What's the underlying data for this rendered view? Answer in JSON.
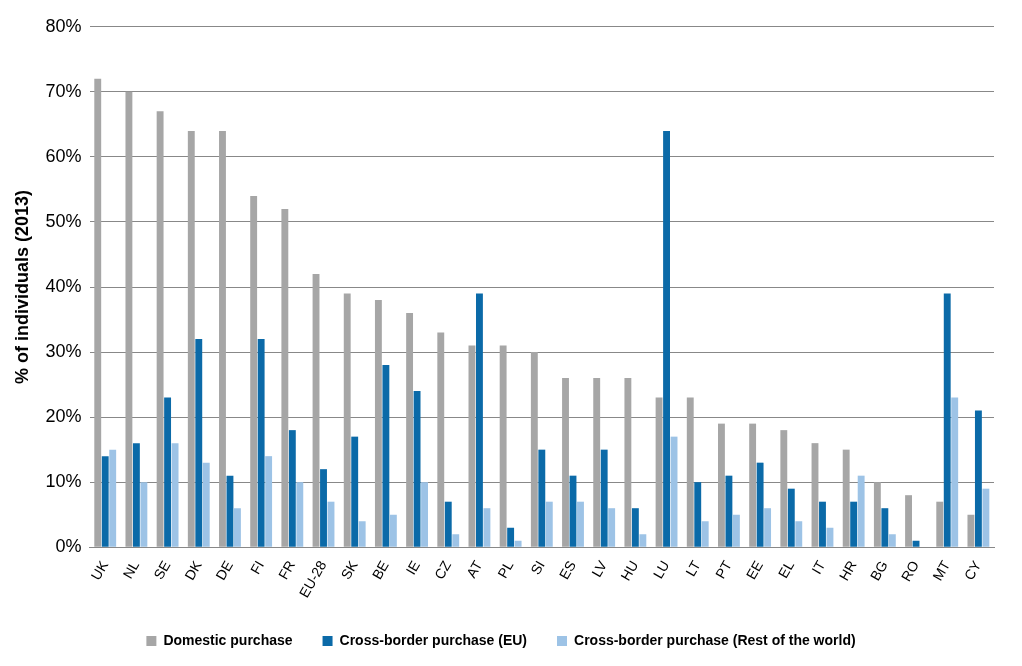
{
  "chart_data": {
    "type": "bar",
    "ylabel": "% of individuals (2013)",
    "categories": [
      "UK",
      "NL",
      "SE",
      "DK",
      "DE",
      "FI",
      "FR",
      "EU-28",
      "SK",
      "BE",
      "IE",
      "CZ",
      "AT",
      "PL",
      "SI",
      "ES",
      "LV",
      "HU",
      "LU",
      "LT",
      "PT",
      "EE",
      "EL",
      "IT",
      "HR",
      "BG",
      "RO",
      "MT",
      "CY"
    ],
    "series": [
      {
        "name": "Domestic purchase",
        "color": "#a6a6a6",
        "values": [
          72,
          70,
          67,
          64,
          64,
          54,
          52,
          42,
          39,
          38,
          36,
          33,
          31,
          31,
          30,
          26,
          26,
          26,
          23,
          23,
          19,
          19,
          18,
          16,
          15,
          10,
          8,
          7,
          5
        ]
      },
      {
        "name": "Cross-border purchase (EU)",
        "color": "#0b6aa8",
        "values": [
          14,
          16,
          23,
          32,
          11,
          32,
          18,
          12,
          17,
          28,
          24,
          7,
          39,
          3,
          15,
          11,
          15,
          6,
          64,
          10,
          11,
          13,
          9,
          7,
          7,
          6,
          1,
          39,
          21
        ]
      },
      {
        "name": "Cross-border purchase (Rest of the world)",
        "color": "#9dc3e6",
        "values": [
          15,
          10,
          16,
          13,
          6,
          14,
          10,
          7,
          4,
          5,
          10,
          2,
          6,
          1,
          7,
          7,
          6,
          2,
          17,
          4,
          5,
          6,
          4,
          3,
          11,
          2,
          0,
          23,
          9
        ]
      }
    ],
    "ylim": [
      0,
      80
    ],
    "yticks": [
      {
        "value": 0,
        "label": "0%"
      },
      {
        "value": 10,
        "label": "10%"
      },
      {
        "value": 20,
        "label": "20%"
      },
      {
        "value": 30,
        "label": "30%"
      },
      {
        "value": 40,
        "label": "40%"
      },
      {
        "value": 50,
        "label": "50%"
      },
      {
        "value": 60,
        "label": "60%"
      },
      {
        "value": 70,
        "label": "70%"
      },
      {
        "value": 80,
        "label": "80%"
      }
    ],
    "grid": "y",
    "legend": "bottom"
  }
}
